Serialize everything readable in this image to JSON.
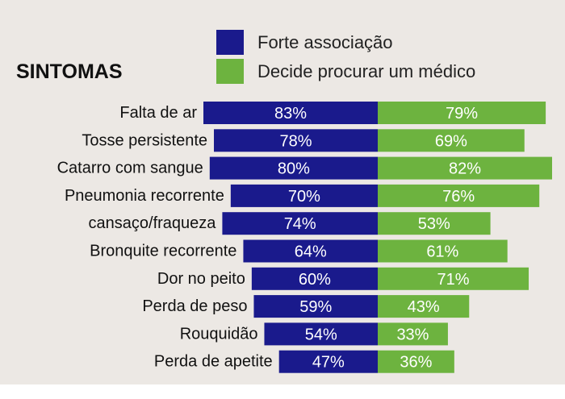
{
  "chart_data": {
    "type": "bar",
    "title": "SINTOMAS",
    "categories": [
      "Falta de ar",
      "Tosse persistente",
      "Catarro com sangue",
      "Pneumonia recorrente",
      "cansaço/fraqueza",
      "Bronquite recorrente",
      "Dor no peito",
      "Perda de peso",
      "Rouquidão",
      "Perda de apetite"
    ],
    "series": [
      {
        "name": "Forte associação",
        "color": "#1a1a8c",
        "direction": "left",
        "values": [
          83,
          78,
          80,
          70,
          74,
          64,
          60,
          59,
          54,
          47
        ],
        "labels": [
          "83%",
          "78%",
          "80%",
          "70%",
          "74%",
          "64%",
          "60%",
          "59%",
          "54%",
          "47%"
        ]
      },
      {
        "name": "Decide procurar um médico",
        "color": "#6db33f",
        "direction": "right",
        "values": [
          79,
          69,
          82,
          76,
          53,
          61,
          71,
          43,
          33,
          36
        ],
        "labels": [
          "79%",
          "69%",
          "82%",
          "76%",
          "53%",
          "61%",
          "71%",
          "43%",
          "33%",
          "36%"
        ]
      }
    ],
    "legend": "top-right",
    "grid": false
  }
}
